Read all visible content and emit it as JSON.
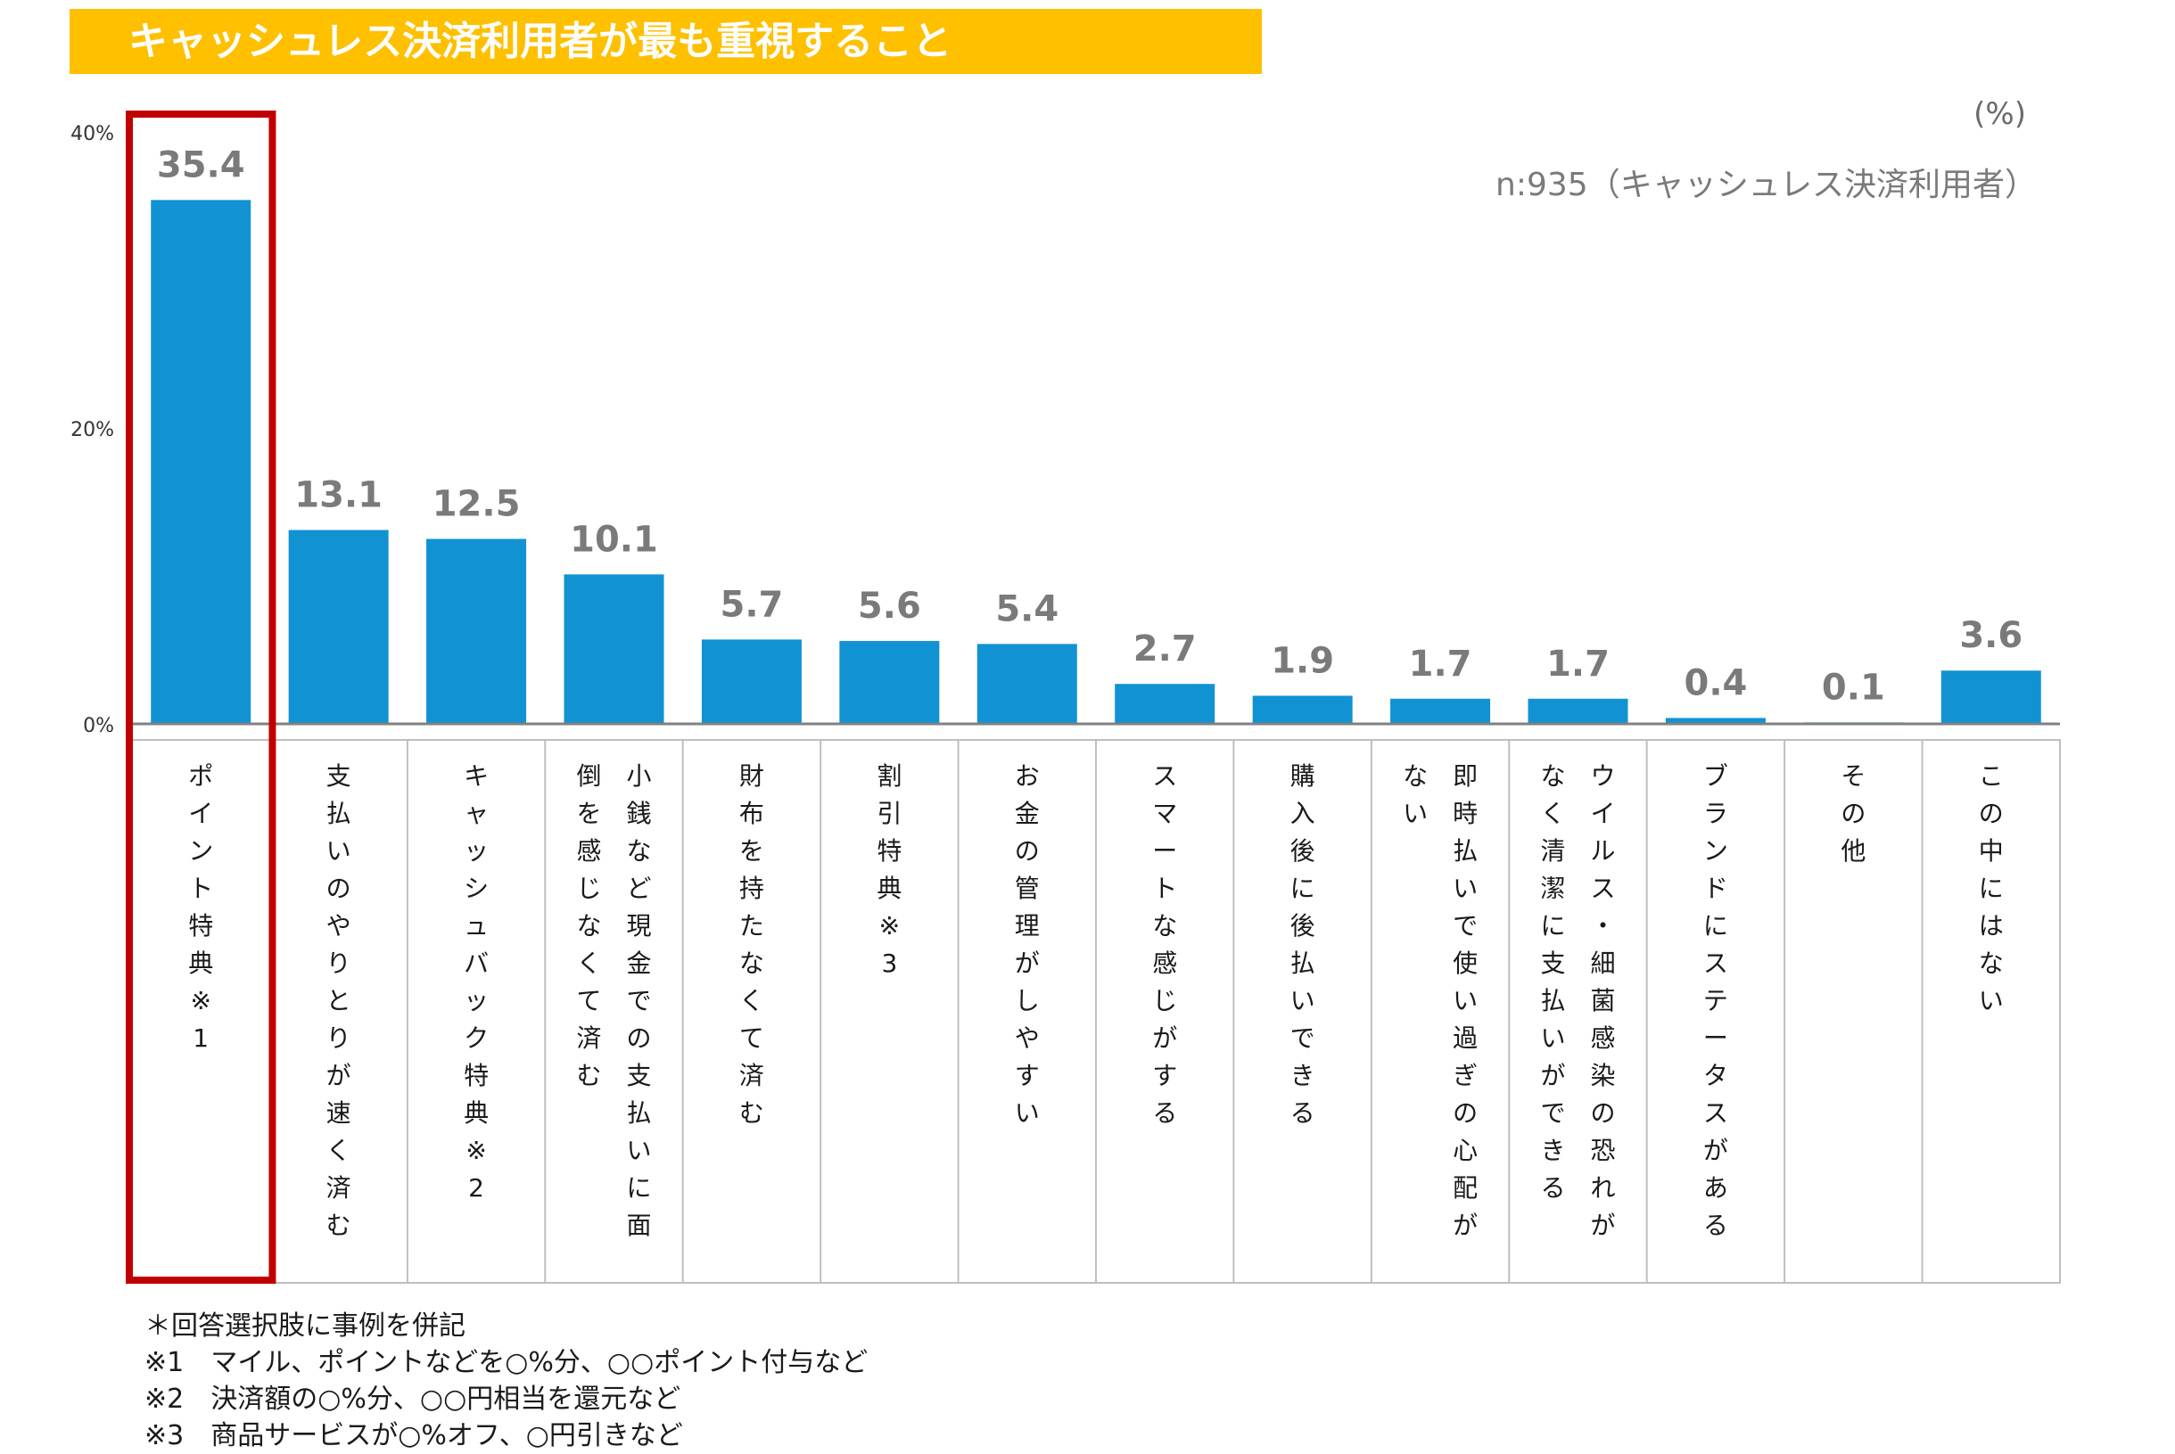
{
  "header": {
    "title": "キャッシュレス決済利用者が最も重視すること"
  },
  "unit_label": "(%)",
  "sample_label": "n:935（キャッシュレス決済利用者）",
  "colors": {
    "bar": "#1192D3",
    "highlight": "#C00000",
    "title_bg": "#FFC000",
    "value_label": "#7a7a7a"
  },
  "highlight_index": 0,
  "chart_data": {
    "type": "bar",
    "categories": [
      "ポイント特典※1",
      "支払いのやりとりが速く済む",
      "キャッシュバック特典※2",
      "小銭など現金での支払いに面倒を感じなくて済む",
      "財布を持たなくて済む",
      "割引特典※3",
      "お金の管理がしやすい",
      "スマートな感じがする",
      "購入後に後払いできる",
      "即時払いで使い過ぎの心配がない",
      "ウイルス・細菌感染の恐れがなく清潔に支払いができる",
      "ブランドにステータスがある",
      "その他",
      "この中にはない"
    ],
    "category_columns": [
      [
        "ポイント特典※1"
      ],
      [
        "支払いのやりとりが速く済む"
      ],
      [
        "キャッシュバック特典※2"
      ],
      [
        "小銭など現金での支払いに面",
        "倒を感じなくて済む"
      ],
      [
        "財布を持たなくて済む"
      ],
      [
        "割引特典※3"
      ],
      [
        "お金の管理がしやすい"
      ],
      [
        "スマートな感じがする"
      ],
      [
        "購入後に後払いできる"
      ],
      [
        "即時払いで使い過ぎの心配が",
        "ない"
      ],
      [
        "ウイルス・細菌感染の恐れが",
        "なく清潔に支払いができる"
      ],
      [
        "ブランドにステータスがある"
      ],
      [
        "その他"
      ],
      [
        "この中にはない"
      ]
    ],
    "values": [
      35.4,
      13.1,
      12.5,
      10.1,
      5.7,
      5.6,
      5.4,
      2.7,
      1.9,
      1.7,
      1.7,
      0.4,
      0.1,
      3.6
    ],
    "value_labels": [
      "35.4",
      "13.1",
      "12.5",
      "10.1",
      "5.7",
      "5.6",
      "5.4",
      "2.7",
      "1.9",
      "1.7",
      "1.7",
      "0.4",
      "0.1",
      "3.6"
    ],
    "yticks": [
      0,
      20,
      40
    ],
    "ytick_labels": [
      "0%",
      "20%",
      "40%"
    ],
    "ylim": [
      0,
      40
    ],
    "grid": false
  },
  "footnotes": [
    "＊回答選択肢に事例を併記",
    "※1　マイル、ポイントなどを○%分、○○ポイント付与など",
    "※2　決済額の○%分、○○円相当を還元など",
    "※3　商品サービスが○%オフ、○円引きなど"
  ]
}
